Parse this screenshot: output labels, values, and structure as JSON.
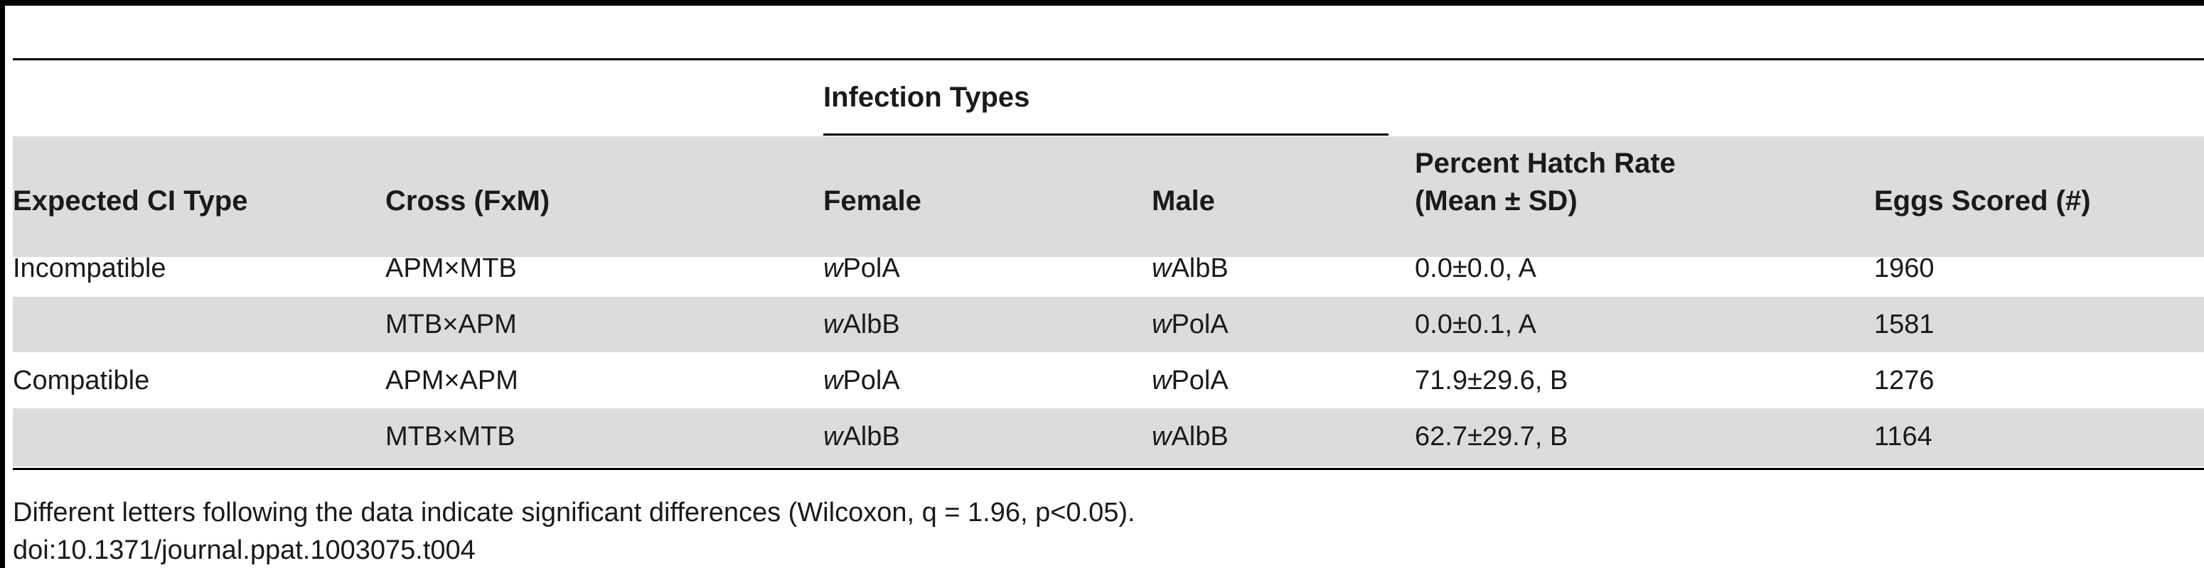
{
  "table": {
    "group_header": "Infection Types",
    "headers": {
      "expected_ci_type": "Expected CI Type",
      "cross": "Cross (FxM)",
      "female": "Female",
      "male": "Male",
      "hatch_rate_line1": "Percent Hatch Rate",
      "hatch_rate_line2": "(Mean ± SD)",
      "eggs_scored": "Eggs Scored (#)"
    },
    "rows": [
      {
        "expected_ci_type": "Incompatible",
        "cross": "APM×MTB",
        "female_prefix": "w",
        "female_rest": "PolA",
        "male_prefix": "w",
        "male_rest": "AlbB",
        "hatch_rate": "0.0±0.0, A",
        "eggs_scored": "1960"
      },
      {
        "expected_ci_type": "",
        "cross": "MTB×APM",
        "female_prefix": "w",
        "female_rest": "AlbB",
        "male_prefix": "w",
        "male_rest": "PolA",
        "hatch_rate": "0.0±0.1, A",
        "eggs_scored": "1581"
      },
      {
        "expected_ci_type": "Compatible",
        "cross": "APM×APM",
        "female_prefix": "w",
        "female_rest": "PolA",
        "male_prefix": "w",
        "male_rest": "PolA",
        "hatch_rate": "71.9±29.6, B",
        "eggs_scored": "1276"
      },
      {
        "expected_ci_type": "",
        "cross": "MTB×MTB",
        "female_prefix": "w",
        "female_rest": "AlbB",
        "male_prefix": "w",
        "male_rest": "AlbB",
        "hatch_rate": "62.7±29.7, B",
        "eggs_scored": "1164"
      }
    ],
    "footnote": "Different letters following the data indicate significant differences (Wilcoxon, q = 1.96, p<0.05).",
    "doi": "doi:10.1371/journal.ppat.1003075.t004"
  }
}
